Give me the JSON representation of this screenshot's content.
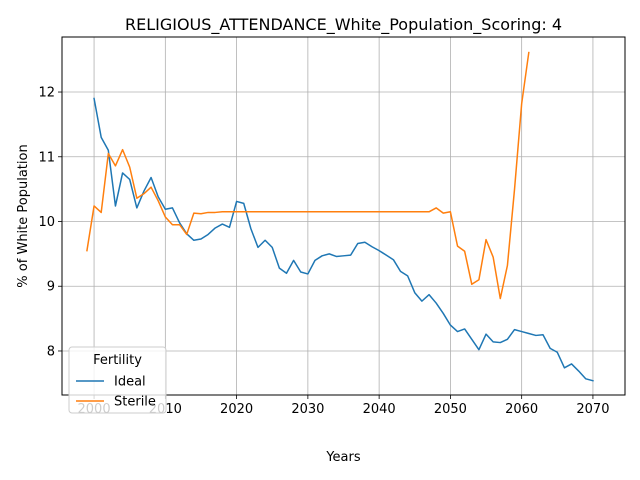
{
  "chart_data": {
    "type": "line",
    "title": "RELIGIOUS_ATTENDANCE_White_Population_Scoring: 4",
    "xlabel": "Years",
    "ylabel": "% of White Population",
    "xlim": [
      1995.5,
      2074.5
    ],
    "ylim": [
      7.32,
      12.85
    ],
    "xticks": [
      2000,
      2010,
      2020,
      2030,
      2040,
      2050,
      2060,
      2070
    ],
    "yticks": [
      8,
      9,
      10,
      11,
      12
    ],
    "grid": true,
    "legend": {
      "title": "Fertility",
      "placement": "lower-left"
    },
    "series": [
      {
        "name": "Ideal",
        "color": "#1f77b4",
        "x": [
          2000,
          2001,
          2002,
          2003,
          2004,
          2005,
          2006,
          2007,
          2008,
          2009,
          2010,
          2011,
          2012,
          2013,
          2014,
          2015,
          2016,
          2017,
          2018,
          2019,
          2020,
          2021,
          2022,
          2023,
          2024,
          2025,
          2026,
          2027,
          2028,
          2029,
          2030,
          2031,
          2032,
          2033,
          2034,
          2035,
          2036,
          2037,
          2038,
          2039,
          2040,
          2041,
          2042,
          2043,
          2044,
          2045,
          2046,
          2047,
          2048,
          2049,
          2050,
          2051,
          2052,
          2053,
          2054,
          2055,
          2056,
          2057,
          2058,
          2059,
          2060,
          2061,
          2062,
          2063,
          2064,
          2065,
          2066,
          2067,
          2068,
          2069,
          2070
        ],
        "y": [
          11.9,
          11.3,
          11.1,
          10.24,
          10.75,
          10.65,
          10.21,
          10.47,
          10.68,
          10.38,
          10.19,
          10.21,
          9.98,
          9.81,
          9.71,
          9.73,
          9.8,
          9.9,
          9.96,
          9.91,
          10.31,
          10.28,
          9.89,
          9.6,
          9.71,
          9.6,
          9.28,
          9.2,
          9.4,
          9.22,
          9.19,
          9.4,
          9.47,
          9.5,
          9.46,
          9.47,
          9.48,
          9.66,
          9.68,
          9.61,
          9.55,
          9.48,
          9.41,
          9.23,
          9.16,
          8.9,
          8.77,
          8.87,
          8.74,
          8.58,
          8.4,
          8.3,
          8.34,
          8.18,
          8.02,
          8.26,
          8.14,
          8.13,
          8.18,
          8.33,
          8.3,
          8.27,
          8.24,
          8.25,
          8.04,
          7.98,
          7.74,
          7.8,
          7.69,
          7.57,
          7.54
        ]
      },
      {
        "name": "Sterile",
        "color": "#ff7f0e",
        "x": [
          1999,
          2000,
          2001,
          2002,
          2003,
          2004,
          2005,
          2006,
          2007,
          2008,
          2009,
          2010,
          2011,
          2012,
          2013,
          2014,
          2015,
          2016,
          2017,
          2018,
          2019,
          2020,
          2021,
          2022,
          2023,
          2024,
          2025,
          2026,
          2027,
          2028,
          2029,
          2030,
          2031,
          2032,
          2033,
          2034,
          2035,
          2036,
          2037,
          2038,
          2039,
          2040,
          2041,
          2042,
          2043,
          2044,
          2045,
          2046,
          2047,
          2048,
          2049,
          2050,
          2051,
          2052,
          2053,
          2054,
          2055,
          2056,
          2057,
          2058,
          2059,
          2060,
          2061
        ],
        "y": [
          9.55,
          10.24,
          10.14,
          11.05,
          10.86,
          11.11,
          10.84,
          10.36,
          10.43,
          10.53,
          10.32,
          10.07,
          9.95,
          9.95,
          9.8,
          10.13,
          10.12,
          10.14,
          10.14,
          10.15,
          10.15,
          10.15,
          10.15,
          10.15,
          10.15,
          10.15,
          10.15,
          10.15,
          10.15,
          10.15,
          10.15,
          10.15,
          10.15,
          10.15,
          10.15,
          10.15,
          10.15,
          10.15,
          10.15,
          10.15,
          10.15,
          10.15,
          10.15,
          10.15,
          10.15,
          10.15,
          10.15,
          10.15,
          10.15,
          10.21,
          10.13,
          10.15,
          9.62,
          9.54,
          9.03,
          9.1,
          9.72,
          9.45,
          8.81,
          9.32,
          10.5,
          11.82,
          12.61
        ]
      }
    ]
  }
}
